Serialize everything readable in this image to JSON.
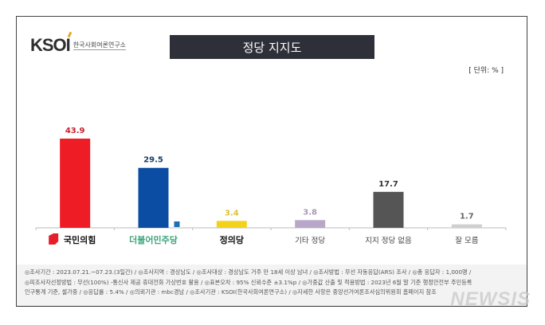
{
  "logo": {
    "mark": "KSOI",
    "sub": "한국사회여론연구소"
  },
  "chart_data": {
    "type": "bar",
    "title": "정당 지지도",
    "unit_label": "[ 단위: % ]",
    "categories": [
      "국민의힘",
      "더불어민주당",
      "정의당",
      "기타 정당",
      "지지 정당 없음",
      "잘 모름"
    ],
    "values": [
      43.9,
      29.5,
      3.4,
      3.8,
      17.7,
      1.7
    ],
    "colors": [
      "#ee1c25",
      "#0a4da2",
      "#f5d21a",
      "#b9a7c9",
      "#555555",
      "#cfcfcf"
    ],
    "label_colors": [
      "#c8202a",
      "#1b3d6b",
      "#e0c030",
      "#a898b8",
      "#333333",
      "#666666"
    ],
    "category_colors": [
      "#111111",
      "#3aa37a",
      "#111111",
      "#444444",
      "#444444",
      "#444444"
    ],
    "ylim": [
      0,
      50
    ],
    "grid": false
  },
  "footnote": [
    "◎조사기간 : 2023.07.21.~07.23.(3일간) / ◎조사지역 : 경상남도 / ◎조사대상 : 경상남도 거주 만 18세 이상 남녀 / ◎조사방법 : 무선 자동응답(ARS) 조사 / ◎총 응답자 : 1,000명 /",
    "◎피조사자선정방법 : 무선(100%) -통신사 제공 휴대전화 가상번호 활용 / ◎표본오차 : 95% 신뢰수준 ±3.1%p / ◎가중값 산출 및 적용방법 : 2023년 6월 말 기준 행정안전부 주민등록",
    "인구통계 기준, 셀가중 / ◎응답률 : 5.4% / ◎의뢰기관 : mbc경남 / ◎조사기관 : KSOI(한국사회여론연구소) / ◎자세한 사항은 중앙선거여론조사심의위원회 홈페이지 참조"
  ],
  "watermark": "NEWSIS"
}
